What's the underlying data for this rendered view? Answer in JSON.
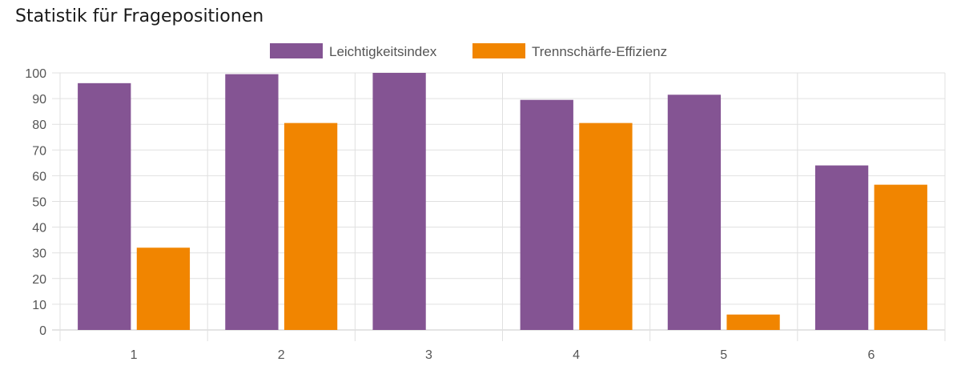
{
  "page": {
    "title": "Statistik für Fragepositionen"
  },
  "colors": {
    "series1": "#845493",
    "series2": "#f18500",
    "grid": "#e0e0e0",
    "axis": "#c8c8c8",
    "tick_text": "#555555"
  },
  "chart_data": {
    "type": "bar",
    "title": "",
    "xlabel": "",
    "ylabel": "",
    "categories": [
      "1",
      "2",
      "3",
      "4",
      "5",
      "6"
    ],
    "series": [
      {
        "name": "Leichtigkeitsindex",
        "values": [
          96,
          99.5,
          100,
          89.5,
          91.5,
          64
        ]
      },
      {
        "name": "Trennschärfe-Effizienz",
        "values": [
          32,
          80.5,
          0,
          80.5,
          6,
          56.5
        ]
      }
    ],
    "ylim": [
      0,
      100
    ],
    "yticks": [
      0,
      10,
      20,
      30,
      40,
      50,
      60,
      70,
      80,
      90,
      100
    ],
    "grid": true,
    "legend_position": "top-center"
  }
}
